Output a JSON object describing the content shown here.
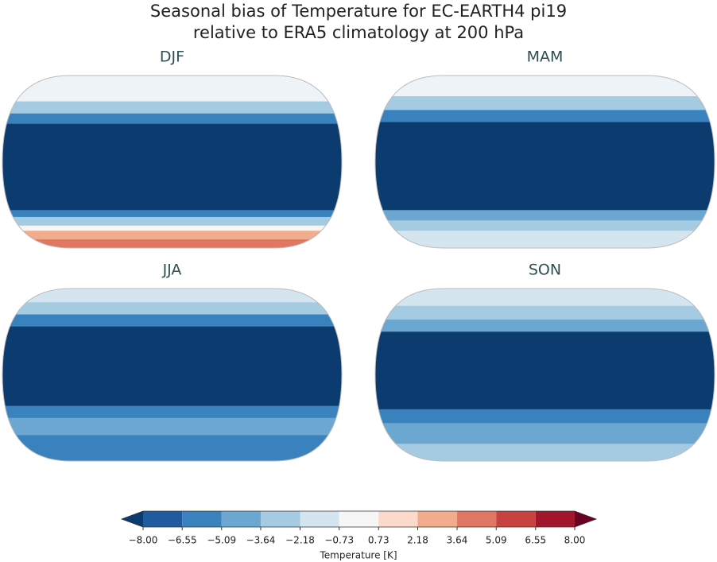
{
  "title": [
    "Seasonal bias of Temperature for EC-EARTH4 pi19",
    "relative to ERA5 climatology at 200 hPa"
  ],
  "panels": [
    {
      "title": "DJF"
    },
    {
      "title": "MAM"
    },
    {
      "title": "JJA"
    },
    {
      "title": "SON"
    }
  ],
  "colorbar": {
    "label": "Temperature [K]",
    "ticks": [
      {
        "value": -8,
        "label": "−8.00"
      },
      {
        "value": -6.55,
        "label": "−6.55"
      },
      {
        "value": -5.09,
        "label": "−5.09"
      },
      {
        "value": -3.64,
        "label": "−3.64"
      },
      {
        "value": -2.18,
        "label": "−2.18"
      },
      {
        "value": -0.73,
        "label": "−0.73"
      },
      {
        "value": 0.73,
        "label": "0.73"
      },
      {
        "value": 2.18,
        "label": "2.18"
      },
      {
        "value": 3.64,
        "label": "3.64"
      },
      {
        "value": 5.09,
        "label": "5.09"
      },
      {
        "value": 6.55,
        "label": "6.55"
      },
      {
        "value": 8,
        "label": "8.00"
      }
    ],
    "colors": [
      "#1f5b9e",
      "#3a82bd",
      "#6ba7d0",
      "#a5cbe3",
      "#d4e5f0",
      "#f6f6f6",
      "#fbdacb",
      "#f3ab8e",
      "#e07763",
      "#c8433f",
      "#a2162b"
    ],
    "extend_colors": [
      "#0c3b70",
      "#6b0020"
    ]
  }
}
